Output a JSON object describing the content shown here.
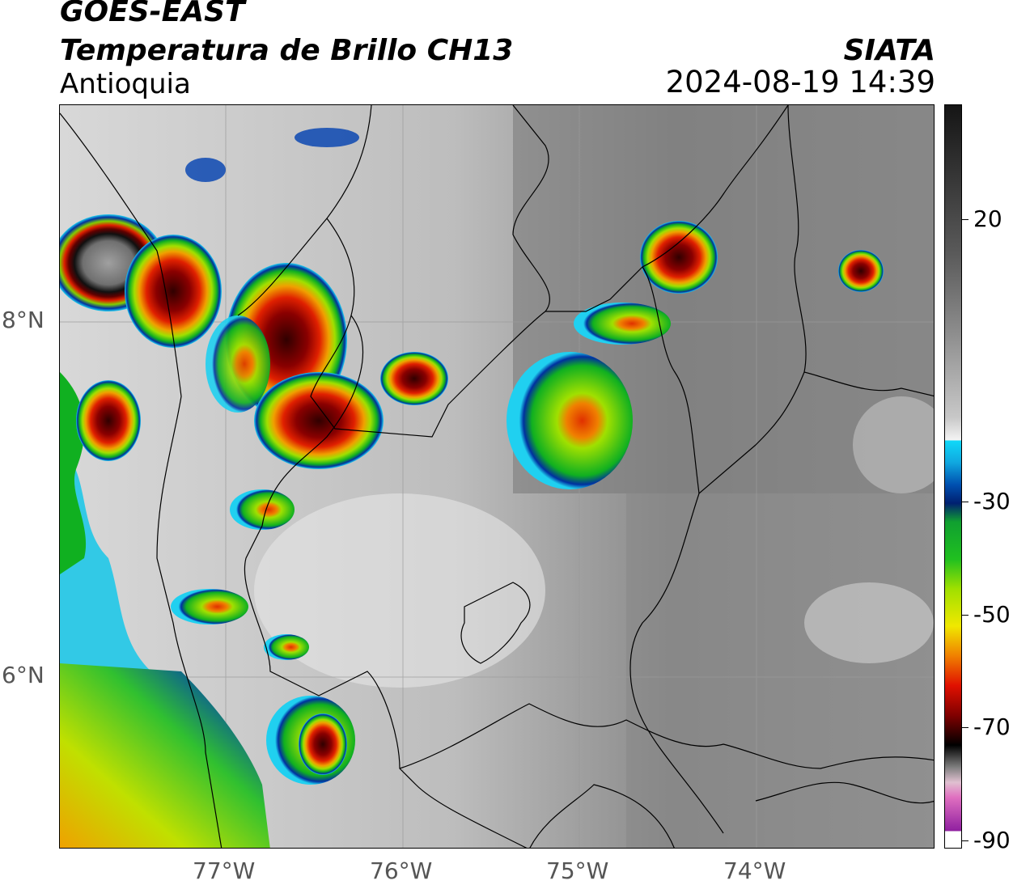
{
  "header": {
    "satellite": "GOES-EAST",
    "product": "Temperatura de Brillo CH13",
    "region": "Antioquia",
    "source": "SIATA",
    "datetime": "2024-08-19 14:39"
  },
  "map": {
    "lat_labels": [
      "8°N",
      "6°N"
    ],
    "lon_labels": [
      "77°W",
      "76°W",
      "75°W",
      "74°W"
    ]
  },
  "colorbar": {
    "ticks": [
      "20",
      "-30",
      "-50",
      "-70",
      "-90"
    ],
    "colors": {
      "warm_gray_top": "#1a1a1a",
      "white": "#f4f4f4",
      "cyan": "#10d0f0",
      "blue": "#003a9a",
      "green": "#10c020",
      "yellow": "#f0e800",
      "orange": "#f07800",
      "red": "#d00000",
      "dark_red": "#400000",
      "black": "#000000",
      "pink": "#e070c0",
      "purple": "#9020a0"
    }
  }
}
